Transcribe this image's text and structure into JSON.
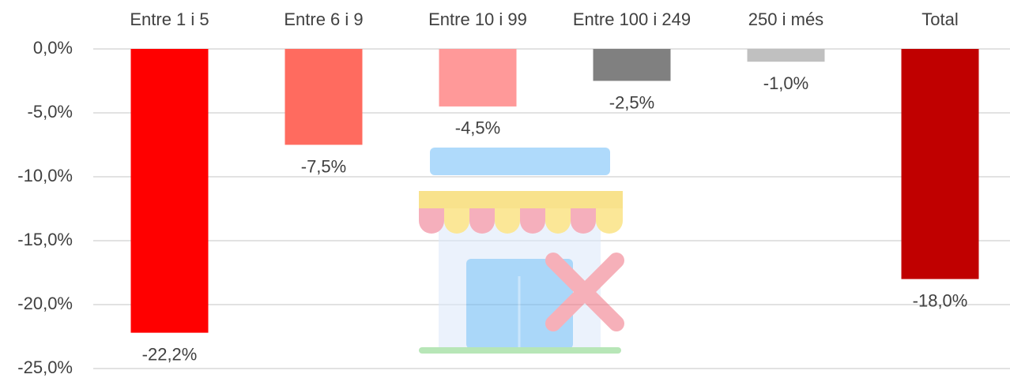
{
  "chart_data": {
    "type": "bar",
    "categories": [
      "Entre 1 i 5",
      "Entre 6 i 9",
      "Entre 10 i 99",
      "Entre 100 i 249",
      "250 i més",
      "Total"
    ],
    "values": [
      -22.2,
      -7.5,
      -4.5,
      -2.5,
      -1.0,
      -18.0
    ],
    "value_labels": [
      "-22,2%",
      "-7,5%",
      "-4,5%",
      "-2,5%",
      "-1,0%",
      "-18,0%"
    ],
    "colors": [
      "#ff0000",
      "#ff6b5f",
      "#ff9999",
      "#808080",
      "#c0c0c0",
      "#c00000"
    ],
    "ylim": [
      -25,
      0
    ],
    "yticks": [
      {
        "value": 0,
        "label": "0,0%"
      },
      {
        "value": -5,
        "label": "-5,0%"
      },
      {
        "value": -10,
        "label": "-10,0%"
      },
      {
        "value": -15,
        "label": "-15,0%"
      },
      {
        "value": -20,
        "label": "-20,0%"
      },
      {
        "value": -25,
        "label": "-25,0%"
      }
    ],
    "grid": true
  }
}
